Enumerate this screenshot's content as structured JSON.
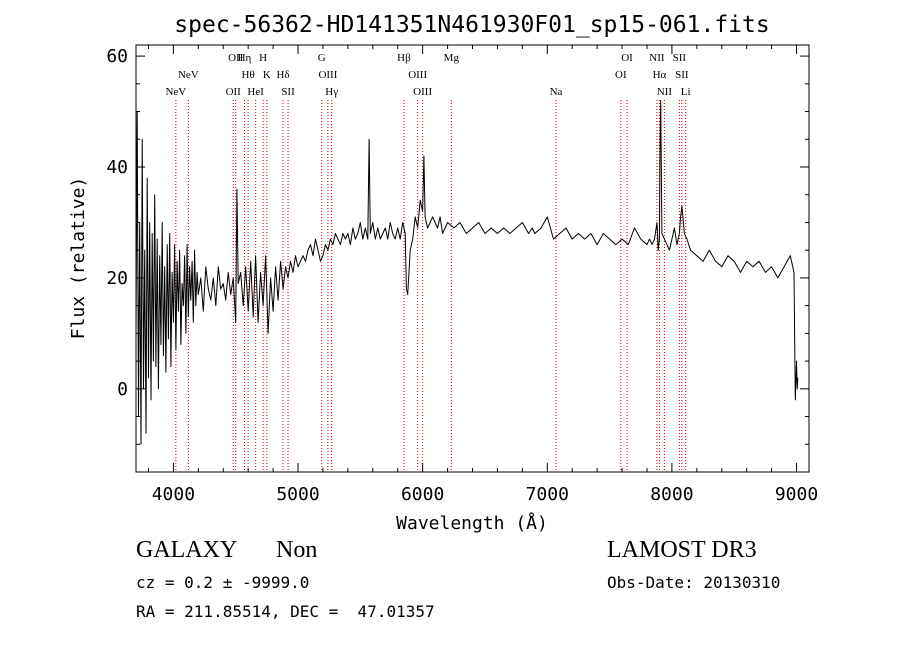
{
  "chart_data": {
    "type": "line",
    "title": "spec-56362-HD141351N461930F01_sp15-061.fits",
    "xlabel": "Wavelength (Å)",
    "ylabel": "Flux (relative)",
    "xlim": [
      3700,
      9100
    ],
    "ylim": [
      -15,
      62
    ],
    "x_ticks": [
      4000,
      5000,
      6000,
      7000,
      8000,
      9000
    ],
    "y_ticks": [
      0,
      20,
      40,
      60
    ],
    "x_ticks_labels": [
      "4000",
      "5000",
      "6000",
      "7000",
      "8000",
      "9000"
    ],
    "y_ticks_labels": [
      "0",
      "20",
      "40",
      "60"
    ],
    "line_color": "#000000",
    "marker_color": "#cc0000",
    "series": [
      {
        "name": "flux",
        "x": [
          3700,
          3710,
          3720,
          3730,
          3740,
          3750,
          3760,
          3770,
          3780,
          3790,
          3800,
          3810,
          3820,
          3830,
          3840,
          3850,
          3860,
          3870,
          3880,
          3890,
          3900,
          3910,
          3920,
          3930,
          3940,
          3950,
          3960,
          3970,
          3980,
          3990,
          4000,
          4010,
          4020,
          4030,
          4040,
          4050,
          4060,
          4070,
          4080,
          4090,
          4100,
          4110,
          4120,
          4130,
          4140,
          4150,
          4160,
          4170,
          4180,
          4190,
          4200,
          4220,
          4240,
          4260,
          4280,
          4300,
          4320,
          4340,
          4360,
          4380,
          4400,
          4420,
          4440,
          4460,
          4480,
          4500,
          4510,
          4520,
          4540,
          4560,
          4580,
          4600,
          4620,
          4640,
          4660,
          4680,
          4700,
          4720,
          4740,
          4760,
          4780,
          4800,
          4820,
          4840,
          4860,
          4880,
          4900,
          4920,
          4940,
          4960,
          4980,
          5000,
          5020,
          5040,
          5060,
          5080,
          5100,
          5120,
          5140,
          5160,
          5180,
          5200,
          5220,
          5240,
          5260,
          5280,
          5300,
          5320,
          5340,
          5360,
          5380,
          5400,
          5420,
          5440,
          5460,
          5480,
          5500,
          5520,
          5540,
          5560,
          5570,
          5580,
          5600,
          5620,
          5640,
          5660,
          5680,
          5700,
          5720,
          5740,
          5760,
          5780,
          5800,
          5820,
          5840,
          5860,
          5870,
          5880,
          5900,
          5920,
          5940,
          5960,
          5980,
          6000,
          6010,
          6020,
          6040,
          6060,
          6080,
          6100,
          6120,
          6140,
          6160,
          6180,
          6200,
          6250,
          6300,
          6350,
          6400,
          6450,
          6500,
          6550,
          6600,
          6650,
          6700,
          6750,
          6800,
          6850,
          6880,
          6900,
          6950,
          7000,
          7050,
          7100,
          7150,
          7200,
          7250,
          7300,
          7350,
          7400,
          7450,
          7500,
          7550,
          7600,
          7650,
          7700,
          7750,
          7800,
          7820,
          7840,
          7860,
          7880,
          7890,
          7900,
          7905,
          7910,
          7915,
          7920,
          7940,
          7960,
          7980,
          8000,
          8020,
          8040,
          8060,
          8070,
          8080,
          8100,
          8120,
          8150,
          8200,
          8250,
          8300,
          8350,
          8400,
          8450,
          8500,
          8550,
          8600,
          8650,
          8700,
          8750,
          8800,
          8850,
          8900,
          8950,
          8980,
          8990,
          9000,
          9005,
          9010
        ],
        "y": [
          10,
          50,
          -5,
          30,
          -10,
          45,
          0,
          25,
          -8,
          38,
          2,
          30,
          -2,
          28,
          5,
          35,
          4,
          27,
          0,
          24,
          8,
          30,
          6,
          22,
          3,
          26,
          9,
          28,
          4,
          21,
          12,
          26,
          7,
          23,
          14,
          25,
          8,
          19,
          15,
          24,
          10,
          26,
          13,
          22,
          16,
          23,
          12,
          25,
          15,
          21,
          17,
          20,
          14,
          22,
          18,
          16,
          20,
          15,
          22,
          18,
          19,
          16,
          21,
          17,
          20,
          12,
          36,
          19,
          21,
          15,
          22,
          14,
          23,
          13,
          24,
          12,
          21,
          15,
          24,
          10,
          20,
          14,
          22,
          16,
          23,
          18,
          22,
          20,
          23,
          21,
          24,
          22,
          23,
          24,
          23,
          25,
          26,
          24,
          27,
          25,
          23,
          24,
          26,
          25,
          27,
          26,
          28,
          27,
          26,
          28,
          27,
          28,
          26,
          29,
          27,
          28,
          30,
          27,
          29,
          27,
          45,
          28,
          30,
          27,
          29,
          27,
          28,
          29,
          27,
          30,
          28,
          27,
          29,
          27,
          30,
          28,
          18,
          17,
          25,
          27,
          31,
          29,
          34,
          32,
          42,
          31,
          29,
          30,
          31,
          30,
          29,
          31,
          28,
          29,
          30,
          29,
          30,
          28,
          29,
          30,
          28,
          29,
          28,
          29,
          28,
          29,
          30,
          28,
          29,
          28,
          29,
          31,
          27,
          28,
          29,
          27,
          28,
          27,
          28,
          26,
          28,
          27,
          26,
          27,
          26,
          29,
          27,
          26,
          27,
          26,
          27,
          30,
          25,
          27,
          45,
          52,
          40,
          28,
          27,
          26,
          25,
          27,
          29,
          26,
          28,
          31,
          33,
          28,
          27,
          25,
          24,
          23,
          25,
          23,
          22,
          24,
          23,
          21,
          23,
          22,
          23,
          21,
          22,
          20,
          22,
          24,
          21,
          -2,
          5,
          0,
          2
        ]
      }
    ],
    "lines": [
      {
        "label": "NeV",
        "x": 4020,
        "row": 3
      },
      {
        "label": "NeV",
        "x": 4120,
        "row": 2
      },
      {
        "label": "OII",
        "x": 4500,
        "row": 1
      },
      {
        "label": "OII",
        "x": 4480,
        "row": 3
      },
      {
        "label": "Hη",
        "x": 4570,
        "row": 1
      },
      {
        "label": "Hθ",
        "x": 4600,
        "row": 2
      },
      {
        "label": "HeI",
        "x": 4660,
        "row": 3
      },
      {
        "label": "H",
        "x": 4720,
        "row": 1
      },
      {
        "label": "K",
        "x": 4750,
        "row": 2
      },
      {
        "label": "Hδ",
        "x": 4880,
        "row": 2
      },
      {
        "label": "SII",
        "x": 4920,
        "row": 3
      },
      {
        "label": "G",
        "x": 5190,
        "row": 1
      },
      {
        "label": "OIII",
        "x": 5240,
        "row": 2
      },
      {
        "label": "Hγ",
        "x": 5270,
        "row": 3
      },
      {
        "label": "Hβ",
        "x": 5850,
        "row": 1
      },
      {
        "label": "OIII",
        "x": 5960,
        "row": 2
      },
      {
        "label": "OIII",
        "x": 6000,
        "row": 3
      },
      {
        "label": "Mg",
        "x": 6230,
        "row": 1
      },
      {
        "label": "Na",
        "x": 7070,
        "row": 3
      },
      {
        "label": "OI",
        "x": 7640,
        "row": 1
      },
      {
        "label": "OI",
        "x": 7590,
        "row": 2
      },
      {
        "label": "NII",
        "x": 7880,
        "row": 1
      },
      {
        "label": "Hα",
        "x": 7900,
        "row": 2
      },
      {
        "label": "NII",
        "x": 7940,
        "row": 3
      },
      {
        "label": "SII",
        "x": 8060,
        "row": 1
      },
      {
        "label": "SII",
        "x": 8080,
        "row": 2
      },
      {
        "label": "Li",
        "x": 8110,
        "row": 3
      }
    ]
  },
  "info": {
    "object_class": "GALAXY",
    "subclass": "Non",
    "survey": "LAMOST DR3",
    "cz": "cz = 0.2 ± -9999.0",
    "obs_date": "Obs-Date: 20130310",
    "coords": "RA = 211.85514, DEC =  47.01357"
  }
}
